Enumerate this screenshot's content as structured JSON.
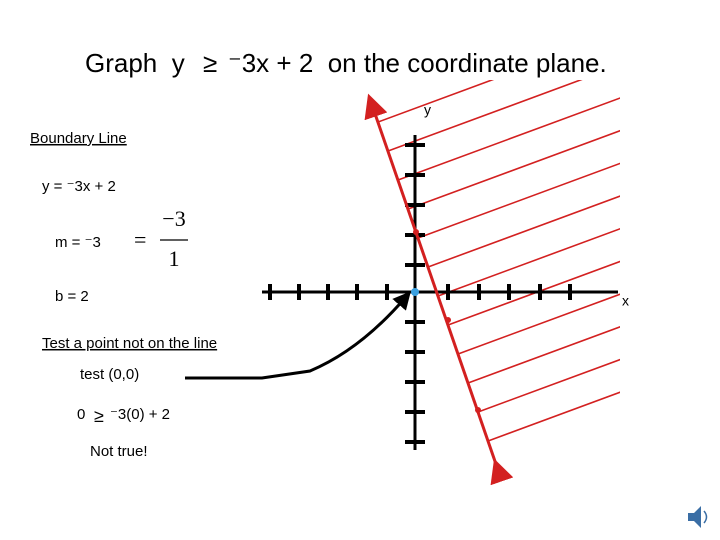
{
  "title": {
    "lead": "Graph  y",
    "symbol": "≥",
    "rest": "⁻3x + 2  on the coordinate plane."
  },
  "axes": {
    "y": "y",
    "x": "x"
  },
  "notes": {
    "heading": "Boundary Line",
    "equation": "y = ⁻3x + 2",
    "slope": "m = ⁻3",
    "equals": "=",
    "numerator": "−3",
    "denominator": "1",
    "intercept": "b = 2",
    "test_heading": "Test a point not on the line",
    "test_point": "test (0,0)",
    "test_lhs": "0",
    "test_symbol": "≥",
    "test_rhs": "⁻3(0) + 2",
    "verdict": "Not true!"
  }
}
